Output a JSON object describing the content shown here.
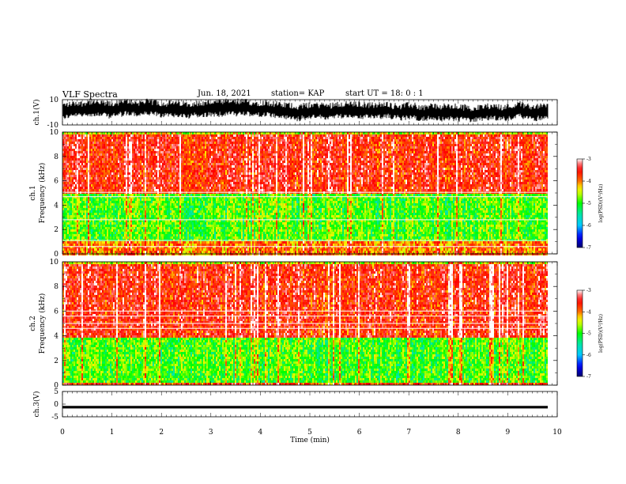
{
  "header": {
    "title": "VLF Spectra",
    "date": "Jun. 18, 2021",
    "station": "station= KAP",
    "start": "start UT =  18: 0 : 1"
  },
  "chart_data": [
    {
      "type": "line",
      "panel": "ch1-waveform",
      "ylabel": "ch.1(V)",
      "ylim": [
        -10,
        10
      ],
      "yticks": [
        "10",
        "-10"
      ],
      "xlim": [
        0,
        10
      ],
      "series": [
        {
          "values": "dense noisy waveform, roughly -7 to +9 V, mean about 1 V",
          "color": "#000000"
        }
      ]
    },
    {
      "type": "heatmap",
      "panel": "ch1-spectrogram",
      "ylabel": "ch.1\nFrequency (kHz)",
      "ylim": [
        0,
        10
      ],
      "yticks": [
        "0",
        "2",
        "4",
        "6",
        "8",
        "10"
      ],
      "xlim": [
        0,
        9.8
      ],
      "colorbar": {
        "label": "log(PSD)(V²/Hz)",
        "range": [
          -7,
          -3
        ],
        "ticks": [
          "-7",
          "-6",
          "-5",
          "-4",
          "-3"
        ]
      },
      "dominant_log_psd": {
        "0-1.2 kHz": -4.0,
        "1.2-5 kHz": -4.9,
        "5-10 kHz": -3.6
      },
      "horizontal_lines_kHz": [
        0.6,
        1.1,
        2.8,
        4.7,
        5.05
      ]
    },
    {
      "type": "heatmap",
      "panel": "ch2-spectrogram",
      "ylabel": "ch.2\nFrequency (kHz)",
      "ylim": [
        0,
        10
      ],
      "yticks": [
        "0",
        "2",
        "4",
        "6",
        "8",
        "10"
      ],
      "xlim": [
        0,
        9.8
      ],
      "colorbar": {
        "label": "log(PSD)(V²/Hz)",
        "range": [
          -7,
          -3
        ],
        "ticks": [
          "-7",
          "-6",
          "-5",
          "-4",
          "-3"
        ]
      },
      "dominant_log_psd": {
        "0-0.3 kHz": -3.8,
        "0.3-4 kHz": -4.9,
        "4-10 kHz": -3.6
      },
      "horizontal_lines_kHz": [
        4.6,
        5.0,
        5.6,
        6.0
      ]
    },
    {
      "type": "line",
      "panel": "ch3-waveform",
      "ylabel": "ch.3(V)",
      "ylim": [
        -5,
        5
      ],
      "yticks": [
        "5",
        "0",
        "-5"
      ],
      "xlim": [
        0,
        10
      ],
      "series": [
        {
          "values": "flat dense band near -1.2 V",
          "color": "#000000"
        }
      ]
    }
  ],
  "xaxis": {
    "label": "Time (min)",
    "ticks": [
      "0",
      "1",
      "2",
      "3",
      "4",
      "5",
      "6",
      "7",
      "8",
      "9",
      "10"
    ],
    "range": [
      0,
      10
    ]
  }
}
